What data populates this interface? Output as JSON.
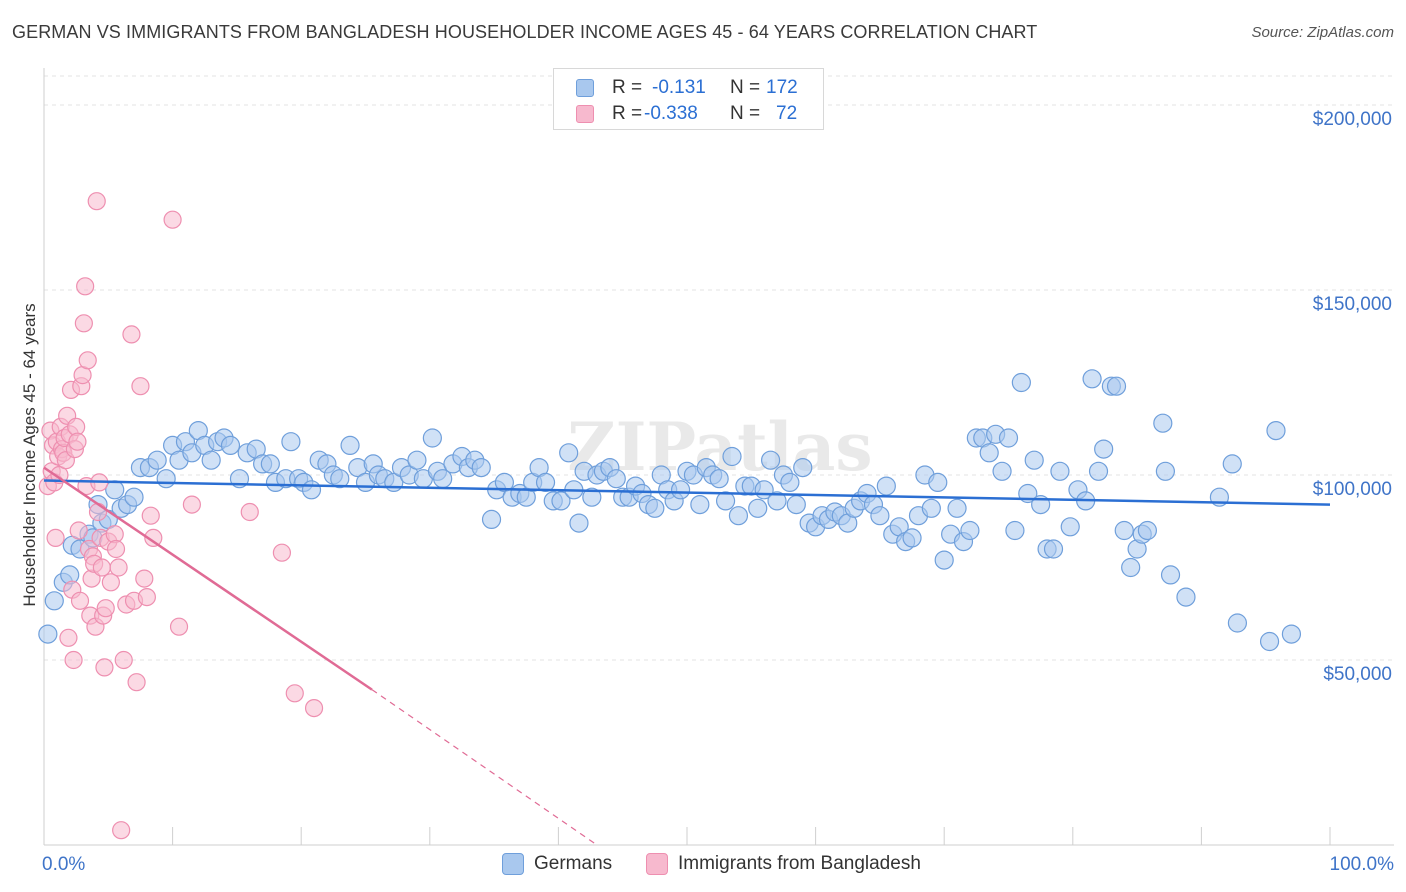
{
  "title": "GERMAN VS IMMIGRANTS FROM BANGLADESH HOUSEHOLDER INCOME AGES 45 - 64 YEARS CORRELATION CHART",
  "source": "Source: ZipAtlas.com",
  "watermark": "ZIPatlas",
  "colors": {
    "germans_fill": "#a9c8ee",
    "germans_stroke": "#6f9fdb",
    "germans_line": "#2b6fd3",
    "bangladesh_fill": "#f7b9ce",
    "bangladesh_stroke": "#ee8fb0",
    "bangladesh_line": "#e06b95",
    "tick_label": "#3f74c8",
    "grid": "#e3e3e3"
  },
  "legend": {
    "rows": [
      {
        "r_label": "R =",
        "r_value": "-0.131",
        "n_label": "N =",
        "n_value": "172"
      },
      {
        "r_label": "R =",
        "r_value": "-0.338",
        "n_label": "N =",
        "n_value": "72"
      }
    ]
  },
  "chart_data": {
    "type": "scatter",
    "title": "GERMAN VS IMMIGRANTS FROM BANGLADESH HOUSEHOLDER INCOME AGES 45 - 64 YEARS CORRELATION CHART",
    "xlabel": "",
    "ylabel": "Householder Income Ages 45 - 64 years",
    "xlim": [
      0,
      100
    ],
    "ylim": [
      0,
      210000
    ],
    "x_tick_labels": [
      "0.0%",
      "100.0%"
    ],
    "y_ticks": [
      50000,
      100000,
      150000,
      200000
    ],
    "y_tick_labels": [
      "$50,000",
      "$100,000",
      "$150,000",
      "$200,000"
    ],
    "grid": true,
    "legend_position": "bottom",
    "series": [
      {
        "name": "Germans",
        "trend": {
          "x": [
            0,
            100
          ],
          "y": [
            98500,
            92000
          ]
        },
        "points": [
          [
            0.3,
            57000
          ],
          [
            0.8,
            66000
          ],
          [
            1.5,
            71000
          ],
          [
            2.0,
            73000
          ],
          [
            2.2,
            81000
          ],
          [
            2.8,
            80000
          ],
          [
            3.5,
            84000
          ],
          [
            3.8,
            83000
          ],
          [
            4.2,
            92000
          ],
          [
            4.5,
            87000
          ],
          [
            5.0,
            88000
          ],
          [
            5.5,
            96000
          ],
          [
            6.0,
            91000
          ],
          [
            6.5,
            92000
          ],
          [
            7.0,
            94000
          ],
          [
            7.5,
            102000
          ],
          [
            8.2,
            102000
          ],
          [
            8.8,
            104000
          ],
          [
            9.5,
            99000
          ],
          [
            10.0,
            108000
          ],
          [
            10.5,
            104000
          ],
          [
            11.0,
            109000
          ],
          [
            11.5,
            106000
          ],
          [
            12.0,
            112000
          ],
          [
            12.5,
            108000
          ],
          [
            13.0,
            104000
          ],
          [
            13.5,
            109000
          ],
          [
            14.0,
            110000
          ],
          [
            14.5,
            108000
          ],
          [
            15.2,
            99000
          ],
          [
            15.8,
            106000
          ],
          [
            16.5,
            107000
          ],
          [
            17.0,
            103000
          ],
          [
            17.6,
            103000
          ],
          [
            18.0,
            98000
          ],
          [
            18.8,
            99000
          ],
          [
            19.2,
            109000
          ],
          [
            19.8,
            99000
          ],
          [
            20.2,
            98000
          ],
          [
            20.8,
            96000
          ],
          [
            21.4,
            104000
          ],
          [
            22.0,
            103000
          ],
          [
            22.5,
            100000
          ],
          [
            23.0,
            99000
          ],
          [
            23.8,
            108000
          ],
          [
            24.4,
            102000
          ],
          [
            25.0,
            98000
          ],
          [
            25.6,
            103000
          ],
          [
            26.0,
            100000
          ],
          [
            26.5,
            99000
          ],
          [
            27.2,
            98000
          ],
          [
            27.8,
            102000
          ],
          [
            28.4,
            100000
          ],
          [
            29.0,
            104000
          ],
          [
            29.5,
            99000
          ],
          [
            30.2,
            110000
          ],
          [
            30.6,
            101000
          ],
          [
            31.0,
            99000
          ],
          [
            31.8,
            103000
          ],
          [
            32.5,
            105000
          ],
          [
            33.0,
            102000
          ],
          [
            33.5,
            104000
          ],
          [
            34.0,
            102000
          ],
          [
            34.8,
            88000
          ],
          [
            35.2,
            96000
          ],
          [
            35.8,
            98000
          ],
          [
            36.4,
            94000
          ],
          [
            37.0,
            95000
          ],
          [
            37.5,
            94000
          ],
          [
            38.0,
            98000
          ],
          [
            38.5,
            102000
          ],
          [
            39.0,
            98000
          ],
          [
            39.6,
            93000
          ],
          [
            40.2,
            93000
          ],
          [
            40.8,
            106000
          ],
          [
            41.2,
            96000
          ],
          [
            41.6,
            87000
          ],
          [
            42.0,
            101000
          ],
          [
            42.6,
            94000
          ],
          [
            43.0,
            100000
          ],
          [
            43.5,
            101000
          ],
          [
            44.0,
            102000
          ],
          [
            44.5,
            99000
          ],
          [
            45.0,
            94000
          ],
          [
            45.5,
            94000
          ],
          [
            46.0,
            97000
          ],
          [
            46.5,
            95000
          ],
          [
            47.0,
            92000
          ],
          [
            47.5,
            91000
          ],
          [
            48.0,
            100000
          ],
          [
            48.5,
            96000
          ],
          [
            49.0,
            93000
          ],
          [
            49.5,
            96000
          ],
          [
            50.0,
            101000
          ],
          [
            50.5,
            100000
          ],
          [
            51.0,
            92000
          ],
          [
            51.5,
            102000
          ],
          [
            52.0,
            100000
          ],
          [
            52.5,
            99000
          ],
          [
            53.0,
            93000
          ],
          [
            53.5,
            105000
          ],
          [
            54.0,
            89000
          ],
          [
            54.5,
            97000
          ],
          [
            55.0,
            97000
          ],
          [
            55.5,
            91000
          ],
          [
            56.0,
            96000
          ],
          [
            56.5,
            104000
          ],
          [
            57.0,
            93000
          ],
          [
            57.5,
            100000
          ],
          [
            58.0,
            98000
          ],
          [
            58.5,
            92000
          ],
          [
            59.0,
            102000
          ],
          [
            59.5,
            87000
          ],
          [
            60.0,
            86000
          ],
          [
            60.5,
            89000
          ],
          [
            61.0,
            88000
          ],
          [
            61.5,
            90000
          ],
          [
            62.0,
            89000
          ],
          [
            62.5,
            87000
          ],
          [
            63.0,
            91000
          ],
          [
            63.5,
            93000
          ],
          [
            64.0,
            95000
          ],
          [
            64.5,
            92000
          ],
          [
            65.0,
            89000
          ],
          [
            65.5,
            97000
          ],
          [
            66.0,
            84000
          ],
          [
            66.5,
            86000
          ],
          [
            67.0,
            82000
          ],
          [
            67.5,
            83000
          ],
          [
            68.0,
            89000
          ],
          [
            68.5,
            100000
          ],
          [
            69.0,
            91000
          ],
          [
            69.5,
            98000
          ],
          [
            70.0,
            77000
          ],
          [
            70.5,
            84000
          ],
          [
            71.0,
            91000
          ],
          [
            71.5,
            82000
          ],
          [
            72.0,
            85000
          ],
          [
            72.5,
            110000
          ],
          [
            73.0,
            110000
          ],
          [
            73.5,
            106000
          ],
          [
            74.0,
            111000
          ],
          [
            74.5,
            101000
          ],
          [
            75.0,
            110000
          ],
          [
            75.5,
            85000
          ],
          [
            76.0,
            125000
          ],
          [
            76.5,
            95000
          ],
          [
            77.0,
            104000
          ],
          [
            77.5,
            92000
          ],
          [
            78.0,
            80000
          ],
          [
            78.5,
            80000
          ],
          [
            79.0,
            101000
          ],
          [
            79.8,
            86000
          ],
          [
            80.4,
            96000
          ],
          [
            81.0,
            93000
          ],
          [
            81.5,
            126000
          ],
          [
            82.0,
            101000
          ],
          [
            82.4,
            107000
          ],
          [
            83.0,
            124000
          ],
          [
            83.4,
            124000
          ],
          [
            84.0,
            85000
          ],
          [
            84.5,
            75000
          ],
          [
            85.0,
            80000
          ],
          [
            85.4,
            84000
          ],
          [
            85.8,
            85000
          ],
          [
            87.0,
            114000
          ],
          [
            87.2,
            101000
          ],
          [
            87.6,
            73000
          ],
          [
            88.8,
            67000
          ],
          [
            91.4,
            94000
          ],
          [
            92.4,
            103000
          ],
          [
            92.8,
            60000
          ],
          [
            95.3,
            55000
          ],
          [
            95.8,
            112000
          ],
          [
            97.0,
            57000
          ]
        ]
      },
      {
        "name": "Immigrants from Bangladesh",
        "trend": {
          "x": [
            0,
            25.5,
            43
          ],
          "y": [
            102000,
            42000,
            0
          ]
        },
        "points": [
          [
            0.3,
            97000
          ],
          [
            0.5,
            112000
          ],
          [
            0.6,
            101000
          ],
          [
            0.7,
            108000
          ],
          [
            0.8,
            98000
          ],
          [
            0.9,
            83000
          ],
          [
            1.0,
            109000
          ],
          [
            1.1,
            105000
          ],
          [
            1.2,
            100000
          ],
          [
            1.3,
            113000
          ],
          [
            1.4,
            107000
          ],
          [
            1.5,
            106000
          ],
          [
            1.6,
            110000
          ],
          [
            1.7,
            104000
          ],
          [
            1.8,
            116000
          ],
          [
            1.9,
            56000
          ],
          [
            2.0,
            111000
          ],
          [
            2.1,
            123000
          ],
          [
            2.2,
            69000
          ],
          [
            2.3,
            50000
          ],
          [
            2.4,
            107000
          ],
          [
            2.5,
            113000
          ],
          [
            2.6,
            109000
          ],
          [
            2.7,
            85000
          ],
          [
            2.8,
            66000
          ],
          [
            2.9,
            124000
          ],
          [
            3.0,
            127000
          ],
          [
            3.1,
            141000
          ],
          [
            3.2,
            151000
          ],
          [
            3.3,
            97000
          ],
          [
            3.4,
            131000
          ],
          [
            3.5,
            80000
          ],
          [
            3.6,
            62000
          ],
          [
            3.7,
            72000
          ],
          [
            3.8,
            78000
          ],
          [
            3.9,
            76000
          ],
          [
            4.0,
            59000
          ],
          [
            4.1,
            174000
          ],
          [
            4.2,
            90000
          ],
          [
            4.3,
            98000
          ],
          [
            4.4,
            83000
          ],
          [
            4.5,
            75000
          ],
          [
            4.6,
            62000
          ],
          [
            4.7,
            48000
          ],
          [
            4.8,
            64000
          ],
          [
            5.0,
            82000
          ],
          [
            5.2,
            71000
          ],
          [
            5.5,
            84000
          ],
          [
            5.6,
            80000
          ],
          [
            5.8,
            75000
          ],
          [
            6.0,
            4000
          ],
          [
            6.2,
            50000
          ],
          [
            6.4,
            65000
          ],
          [
            6.8,
            138000
          ],
          [
            7.0,
            66000
          ],
          [
            7.2,
            44000
          ],
          [
            7.5,
            124000
          ],
          [
            7.8,
            72000
          ],
          [
            8.0,
            67000
          ],
          [
            8.3,
            89000
          ],
          [
            8.5,
            83000
          ],
          [
            10.0,
            169000
          ],
          [
            10.5,
            59000
          ],
          [
            11.5,
            92000
          ],
          [
            16.0,
            90000
          ],
          [
            18.5,
            79000
          ],
          [
            19.5,
            41000
          ],
          [
            21.0,
            37000
          ]
        ]
      }
    ]
  }
}
